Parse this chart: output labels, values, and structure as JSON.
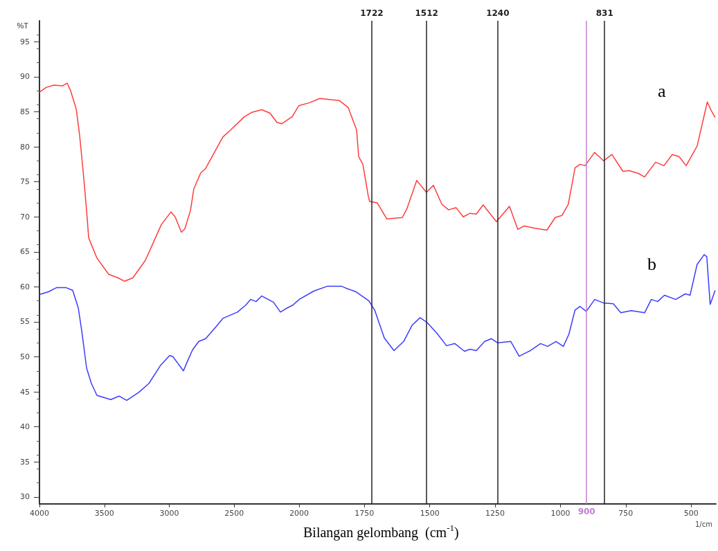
{
  "chart_data": [
    {
      "type": "line",
      "ylabel": "%T",
      "xlim": [
        4000,
        2000
      ],
      "xticks": [
        4000,
        3500,
        3000,
        2500,
        2000
      ],
      "ylim": [
        29,
        98
      ],
      "yticks": [
        30,
        35,
        40,
        45,
        50,
        55,
        60,
        65,
        70,
        75,
        80,
        85,
        90,
        95
      ],
      "grid": false,
      "legend": false,
      "marker": "none",
      "line_style": "solid",
      "series": [
        {
          "color": "#ff3b3b",
          "x": [
            4000,
            3947,
            3888,
            3824,
            3787,
            3760,
            3717,
            3691,
            3664,
            3637,
            3621,
            3557,
            3467,
            3397,
            3344,
            3280,
            3184,
            3061,
            2987,
            2955,
            2907,
            2880,
            2837,
            2811,
            2757,
            2720,
            2635,
            2587,
            2528,
            2421,
            2368,
            2288,
            2224,
            2171,
            2133,
            2053,
            2011,
            2000
          ],
          "values": [
            87.8,
            88.5,
            88.8,
            88.7,
            89.1,
            88.0,
            85.4,
            81.7,
            76.6,
            70.9,
            67.0,
            64.1,
            61.8,
            61.3,
            60.8,
            61.3,
            63.8,
            68.9,
            70.7,
            70.0,
            67.8,
            68.3,
            70.9,
            74.0,
            76.3,
            76.9,
            79.8,
            81.4,
            82.4,
            84.3,
            84.9,
            85.3,
            84.8,
            83.5,
            83.3,
            84.3,
            85.6,
            85.9
          ]
        },
        {
          "color": "#3b3bff",
          "x": [
            4000,
            3931,
            3867,
            3797,
            3744,
            3701,
            3675,
            3637,
            3600,
            3557,
            3451,
            3387,
            3328,
            3237,
            3157,
            3067,
            2997,
            2971,
            2891,
            2864,
            2821,
            2773,
            2720,
            2640,
            2587,
            2475,
            2411,
            2373,
            2331,
            2288,
            2197,
            2144,
            2101,
            2048,
            2000
          ],
          "values": [
            58.9,
            59.3,
            59.9,
            59.9,
            59.5,
            57.0,
            53.8,
            48.4,
            46.2,
            44.5,
            43.9,
            44.4,
            43.8,
            44.9,
            46.2,
            48.8,
            50.2,
            50.0,
            48.0,
            49.2,
            51.0,
            52.2,
            52.6,
            54.3,
            55.5,
            56.4,
            57.4,
            58.2,
            57.9,
            58.7,
            57.8,
            56.4,
            56.9,
            57.4,
            58.2
          ]
        }
      ]
    },
    {
      "type": "line",
      "xlabel": "Bilangan gelombang  (cm$^{-1}$)",
      "xlim": [
        2000,
        405
      ],
      "xticks": [
        1750,
        1500,
        1250,
        1000,
        750,
        500
      ],
      "ylim": [
        29,
        98
      ],
      "tick_labels": "x",
      "grid": false,
      "legend": false,
      "marker": "none",
      "line_style": "solid",
      "annotations": [
        "1/cm"
      ],
      "ref_lines": [
        {
          "axis": "x",
          "value": 1722,
          "label": "1722",
          "color": "#222222"
        },
        {
          "axis": "x",
          "value": 1512,
          "label": "1512",
          "color": "#222222"
        },
        {
          "axis": "x",
          "value": 1240,
          "label": "1240",
          "color": "#222222"
        },
        {
          "axis": "x",
          "value": 831,
          "label": "831",
          "color": "#222222"
        },
        {
          "axis": "x",
          "value": 900,
          "label": "900",
          "color": "#c080d0"
        }
      ],
      "series": [
        {
          "name": "a",
          "color": "#ff3b3b",
          "x": [
            2000,
            1960,
            1921,
            1846,
            1812,
            1780,
            1772,
            1756,
            1735,
            1730,
            1701,
            1664,
            1605,
            1587,
            1550,
            1513,
            1486,
            1454,
            1428,
            1399,
            1372,
            1346,
            1322,
            1296,
            1245,
            1195,
            1163,
            1139,
            1100,
            1052,
            1020,
            994,
            970,
            944,
            925,
            906,
            869,
            835,
            803,
            761,
            737,
            702,
            678,
            636,
            604,
            572,
            546,
            519,
            477,
            438,
            422,
            408
          ],
          "values": [
            85.9,
            86.3,
            86.9,
            86.6,
            85.6,
            82.4,
            78.6,
            77.5,
            72.9,
            72.2,
            72.0,
            69.7,
            69.9,
            71.2,
            75.2,
            73.5,
            74.5,
            71.8,
            71.0,
            71.3,
            70.0,
            70.5,
            70.4,
            71.7,
            69.3,
            71.5,
            68.2,
            68.7,
            68.4,
            68.1,
            69.9,
            70.2,
            71.8,
            77.0,
            77.5,
            77.3,
            79.2,
            78.0,
            78.9,
            76.5,
            76.6,
            76.2,
            75.7,
            77.8,
            77.3,
            78.9,
            78.6,
            77.3,
            80.1,
            86.4,
            85.1,
            84.2
          ]
        },
        {
          "name": "b",
          "color": "#3b3bff",
          "x": [
            2000,
            1944,
            1891,
            1838,
            1820,
            1783,
            1733,
            1711,
            1674,
            1637,
            1600,
            1568,
            1537,
            1510,
            1473,
            1436,
            1404,
            1367,
            1346,
            1322,
            1290,
            1264,
            1240,
            1190,
            1158,
            1115,
            1076,
            1049,
            1017,
            989,
            968,
            944,
            925,
            901,
            869,
            835,
            798,
            769,
            729,
            678,
            652,
            628,
            602,
            559,
            522,
            504,
            477,
            450,
            440,
            427,
            408
          ],
          "values": [
            58.2,
            59.4,
            60.1,
            60.1,
            59.8,
            59.3,
            58.0,
            56.7,
            52.7,
            50.9,
            52.2,
            54.5,
            55.6,
            54.9,
            53.4,
            51.6,
            51.9,
            50.8,
            51.1,
            50.9,
            52.2,
            52.6,
            52.0,
            52.2,
            50.1,
            50.9,
            51.9,
            51.5,
            52.2,
            51.5,
            53.2,
            56.7,
            57.2,
            56.5,
            58.2,
            57.7,
            57.6,
            56.3,
            56.6,
            56.3,
            58.2,
            57.9,
            58.8,
            58.2,
            59.0,
            58.8,
            63.2,
            64.6,
            64.3,
            57.5,
            59.5
          ]
        }
      ]
    }
  ]
}
